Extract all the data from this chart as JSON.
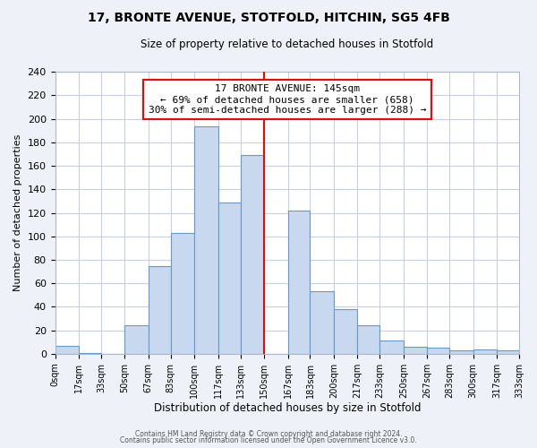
{
  "title": "17, BRONTE AVENUE, STOTFOLD, HITCHIN, SG5 4FB",
  "subtitle": "Size of property relative to detached houses in Stotfold",
  "xlabel": "Distribution of detached houses by size in Stotfold",
  "ylabel": "Number of detached properties",
  "bin_edges": [
    0,
    17,
    33,
    50,
    67,
    83,
    100,
    117,
    133,
    150,
    167,
    183,
    200,
    217,
    233,
    250,
    267,
    283,
    300,
    317,
    333
  ],
  "bin_counts": [
    7,
    1,
    0,
    24,
    75,
    103,
    194,
    129,
    169,
    0,
    122,
    53,
    38,
    24,
    11,
    6,
    5,
    3,
    4,
    3
  ],
  "bar_color": "#c8d8ee",
  "bar_edgecolor": "#6699cc",
  "vline_x": 150,
  "vline_color": "red",
  "annotation_title": "17 BRONTE AVENUE: 145sqm",
  "annotation_line1": "← 69% of detached houses are smaller (658)",
  "annotation_line2": "30% of semi-detached houses are larger (288) →",
  "annotation_box_color": "white",
  "annotation_box_edgecolor": "red",
  "ylim": [
    0,
    240
  ],
  "tick_labels": [
    "0sqm",
    "17sqm",
    "33sqm",
    "50sqm",
    "67sqm",
    "83sqm",
    "100sqm",
    "117sqm",
    "133sqm",
    "150sqm",
    "167sqm",
    "183sqm",
    "200sqm",
    "217sqm",
    "233sqm",
    "250sqm",
    "267sqm",
    "283sqm",
    "300sqm",
    "317sqm",
    "333sqm"
  ],
  "yticks": [
    0,
    20,
    40,
    60,
    80,
    100,
    120,
    140,
    160,
    180,
    200,
    220,
    240
  ],
  "footer1": "Contains HM Land Registry data © Crown copyright and database right 2024.",
  "footer2": "Contains public sector information licensed under the Open Government Licence v3.0.",
  "bg_color": "#eef2f8",
  "plot_bg_color": "#ffffff",
  "grid_color": "#c8d0e0"
}
